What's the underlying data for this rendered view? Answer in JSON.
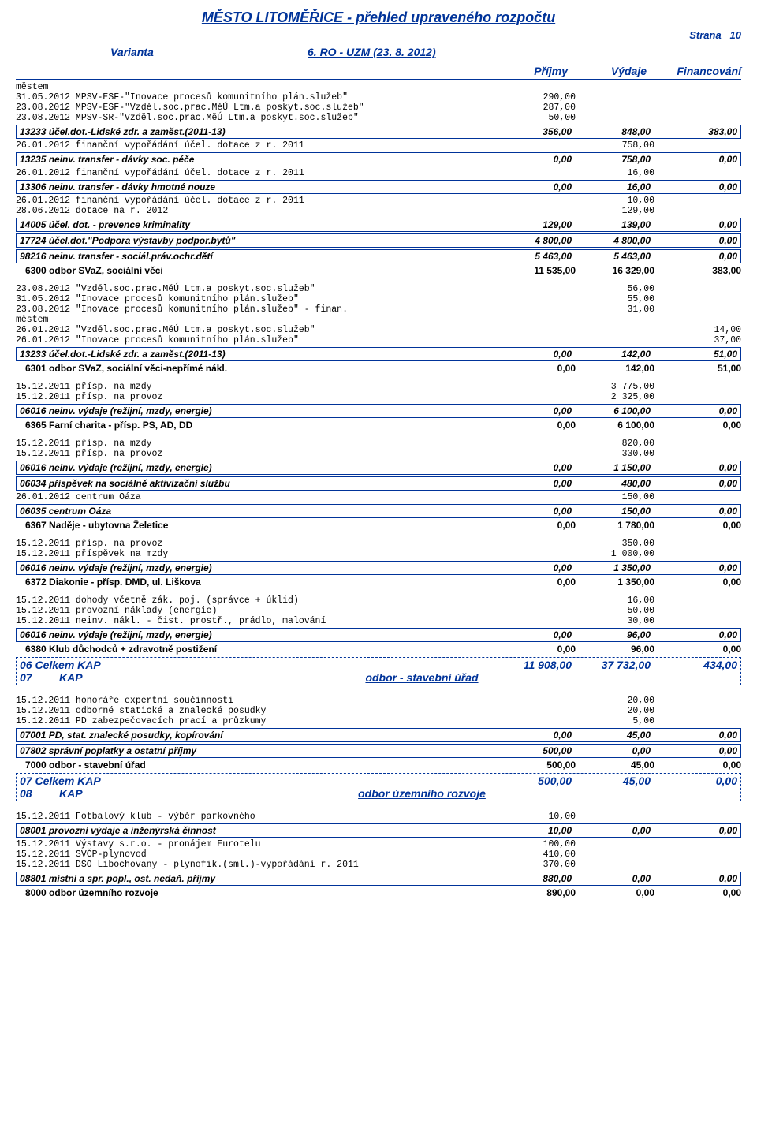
{
  "header": {
    "title": "MĚSTO LITOMĚŘICE - přehled upraveného rozpočtu",
    "strana_label": "Strana",
    "strana_num": "10",
    "varianta_label": "Varianta",
    "varianta_value": "6. RO - UZM (23. 8. 2012)",
    "col1": "Příjmy",
    "col2": "Výdaje",
    "col3": "Financování"
  },
  "lines": {
    "mestem1": "městem",
    "l1": "31.05.2012  MPSV-ESF-\"Inovace procesů komunitního plán.služeb\"",
    "l1v": "290,00",
    "l2": "23.08.2012  MPSV-ESF-\"Vzděl.soc.prac.MěÚ Ltm.a poskyt.soc.služeb\"",
    "l2v": "287,00",
    "l3": "23.08.2012  MPSV-SR-\"Vzděl.soc.prac.MěÚ Ltm.a poskyt.soc.služeb\"",
    "l3v": "50,00",
    "box1": "13233  účel.dot.-Lidské zdr. a zaměst.(2011-13)",
    "box1_1": "356,00",
    "box1_2": "848,00",
    "box1_3": "383,00",
    "l4": "26.01.2012  finanční vypořádání účel. dotace z r. 2011",
    "l4v": "758,00",
    "box2": "13235  neinv. transfer - dávky soc. péče",
    "box2_1": "0,00",
    "box2_2": "758,00",
    "box2_3": "0,00",
    "l5": "26.01.2012  finanční vypořádání účel. dotace z r. 2011",
    "l5v": "16,00",
    "box3": "13306  neinv. transfer - dávky hmotné nouze",
    "box3_1": "0,00",
    "box3_2": "16,00",
    "box3_3": "0,00",
    "l6": "26.01.2012  finanční vypořádání účel. dotace z r. 2011",
    "l6v": "10,00",
    "l7": "28.06.2012  dotace na r. 2012",
    "l7v": "129,00",
    "box4": "14005  účel. dot. - prevence kriminality",
    "box4_1": "129,00",
    "box4_2": "139,00",
    "box4_3": "0,00",
    "box5": "17724  účel.dot.\"Podpora výstavby podpor.bytů\"",
    "box5_1": "4 800,00",
    "box5_2": "4 800,00",
    "box5_3": "0,00",
    "box6": "98216  neinv. transfer - sociál.práv.ochr.dětí",
    "box6_1": "5 463,00",
    "box6_2": "5 463,00",
    "box6_3": "0,00",
    "sum6300": "6300  odbor SVaZ, sociální věci",
    "sum6300_1": "11 535,00",
    "sum6300_2": "16 329,00",
    "sum6300_3": "383,00",
    "l8": "23.08.2012  \"Vzděl.soc.prac.MěÚ Ltm.a poskyt.soc.služeb\"",
    "l8v": "56,00",
    "l9": "31.05.2012  \"Inovace procesů komunitního plán.služeb\"",
    "l9v": "55,00",
    "l10": "23.08.2012  \"Inovace procesů komunitního plán.služeb\"  - finan.",
    "l10v": "31,00",
    "mestem2": "městem",
    "l11": "26.01.2012  \"Vzděl.soc.prac.MěÚ Ltm.a poskyt.soc.služeb\"",
    "l11v": "14,00",
    "l12": "26.01.2012  \"Inovace procesů komunitního plán.služeb\"",
    "l12v": "37,00",
    "box7": "13233  účel.dot.-Lidské zdr. a zaměst.(2011-13)",
    "box7_1": "0,00",
    "box7_2": "142,00",
    "box7_3": "51,00",
    "sum6301": "6301  odbor SVaZ, sociální věci-nepřímé nákl.",
    "sum6301_1": "0,00",
    "sum6301_2": "142,00",
    "sum6301_3": "51,00",
    "l13": "15.12.2011  přísp. na mzdy",
    "l13v": "3 775,00",
    "l14": "15.12.2011  přísp. na provoz",
    "l14v": "2 325,00",
    "box8": "06016  neinv. výdaje (režijní, mzdy, energie)",
    "box8_1": "0,00",
    "box8_2": "6 100,00",
    "box8_3": "0,00",
    "sum6365": "6365  Farní charita - přísp. PS, AD, DD",
    "sum6365_1": "0,00",
    "sum6365_2": "6 100,00",
    "sum6365_3": "0,00",
    "l15": "15.12.2011  přísp. na mzdy",
    "l15v": "820,00",
    "l16": "15.12.2011  přísp. na provoz",
    "l16v": "330,00",
    "box9": "06016  neinv. výdaje (režijní, mzdy, energie)",
    "box9_1": "0,00",
    "box9_2": "1 150,00",
    "box9_3": "0,00",
    "box10": "06034  příspěvek na sociálně aktivizační službu",
    "box10_1": "0,00",
    "box10_2": "480,00",
    "box10_3": "0,00",
    "l17": "26.01.2012  centrum Oáza",
    "l17v": "150,00",
    "box11": "06035  centrum Oáza",
    "box11_1": "0,00",
    "box11_2": "150,00",
    "box11_3": "0,00",
    "sum6367": "6367  Naděje - ubytovna Želetice",
    "sum6367_1": "0,00",
    "sum6367_2": "1 780,00",
    "sum6367_3": "0,00",
    "l18": "15.12.2011  přísp. na provoz",
    "l18v": "350,00",
    "l19": "15.12.2011  příspěvek na mzdy",
    "l19v": "1 000,00",
    "box12": "06016  neinv. výdaje (režijní, mzdy, energie)",
    "box12_1": "0,00",
    "box12_2": "1 350,00",
    "box12_3": "0,00",
    "sum6372": "6372  Diakonie - přísp. DMD, ul. Liškova",
    "sum6372_1": "0,00",
    "sum6372_2": "1 350,00",
    "sum6372_3": "0,00",
    "l20": "15.12.2011  dohody včetně zák. poj. (správce + úklid)",
    "l20v": "16,00",
    "l21": "15.12.2011  provozní náklady (energie)",
    "l21v": "50,00",
    "l22": "15.12.2011  neinv. nákl. - čist. prostř., prádlo, malování",
    "l22v": "30,00",
    "box13": "06016  neinv. výdaje (režijní, mzdy, energie)",
    "box13_1": "0,00",
    "box13_2": "96,00",
    "box13_3": "0,00",
    "sum6380": "6380  Klub důchodců + zdravotně postižení",
    "sum6380_1": "0,00",
    "sum6380_2": "96,00",
    "sum6380_3": "0,00",
    "kap06": "06    Celkem KAP",
    "kap06_1": "11 908,00",
    "kap06_2": "37 732,00",
    "kap06_3": "434,00",
    "sec07_num": "07",
    "sec07_kap": "KAP",
    "sec07_dept": "odbor - stavební úřad",
    "l23": "15.12.2011  honoráře expertní součinnosti",
    "l23v": "20,00",
    "l24": "15.12.2011  odborné statické a znalecké posudky",
    "l24v": "20,00",
    "l25": "15.12.2011  PD zabezpečovacích prací a průzkumy",
    "l25v": "5,00",
    "box14": "07001  PD, stat. znalecké posudky, kopírování",
    "box14_1": "0,00",
    "box14_2": "45,00",
    "box14_3": "0,00",
    "box15": "07802  správní poplatky a ostatní příjmy",
    "box15_1": "500,00",
    "box15_2": "0,00",
    "box15_3": "0,00",
    "sum7000": "7000  odbor - stavební úřad",
    "sum7000_1": "500,00",
    "sum7000_2": "45,00",
    "sum7000_3": "0,00",
    "kap07": "07    Celkem KAP",
    "kap07_1": "500,00",
    "kap07_2": "45,00",
    "kap07_3": "0,00",
    "sec08_num": "08",
    "sec08_kap": "KAP",
    "sec08_dept": "odbor územního rozvoje",
    "l26": "15.12.2011  Fotbalový klub - výběr parkovného",
    "l26v": "10,00",
    "box16": "08001  provozní výdaje a inženýrská činnost",
    "box16_1": "10,00",
    "box16_2": "0,00",
    "box16_3": "0,00",
    "l27": "15.12.2011  Výstavy s.r.o. - pronájem Eurotelu",
    "l27v": "100,00",
    "l28": "15.12.2011  SVČP-plynovod",
    "l28v": "410,00",
    "l29": "15.12.2011  DSO Libochovany - plynofik.(sml.)-vypořádání r. 2011",
    "l29v": "370,00",
    "box17": "08801  místní a spr. popl., ost. nedaň. příjmy",
    "box17_1": "880,00",
    "box17_2": "0,00",
    "box17_3": "0,00",
    "sum8000": "8000  odbor územního rozvoje",
    "sum8000_1": "890,00",
    "sum8000_2": "0,00",
    "sum8000_3": "0,00"
  }
}
